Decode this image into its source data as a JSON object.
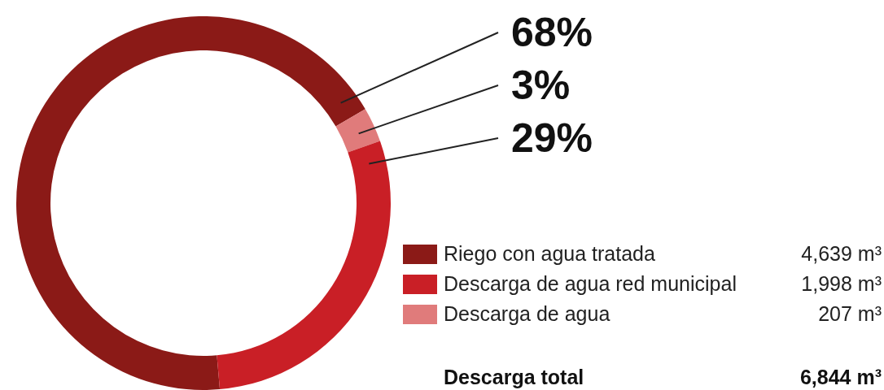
{
  "chart_data": {
    "type": "donut",
    "categories": [
      "Riego con agua tratada",
      "Descarga de agua red municipal",
      "Descarga de agua"
    ],
    "values": [
      68,
      29,
      3
    ],
    "colors": [
      "#8b1a17",
      "#c91f26",
      "#e07b7b"
    ],
    "value_labels": [
      "68%",
      "29%",
      "3%"
    ],
    "legend": "bottom right",
    "annotations": [
      "4,639 m³",
      "1,998 m³",
      "207 m³",
      "Descarga total",
      "6,844 m³"
    ]
  }
}
